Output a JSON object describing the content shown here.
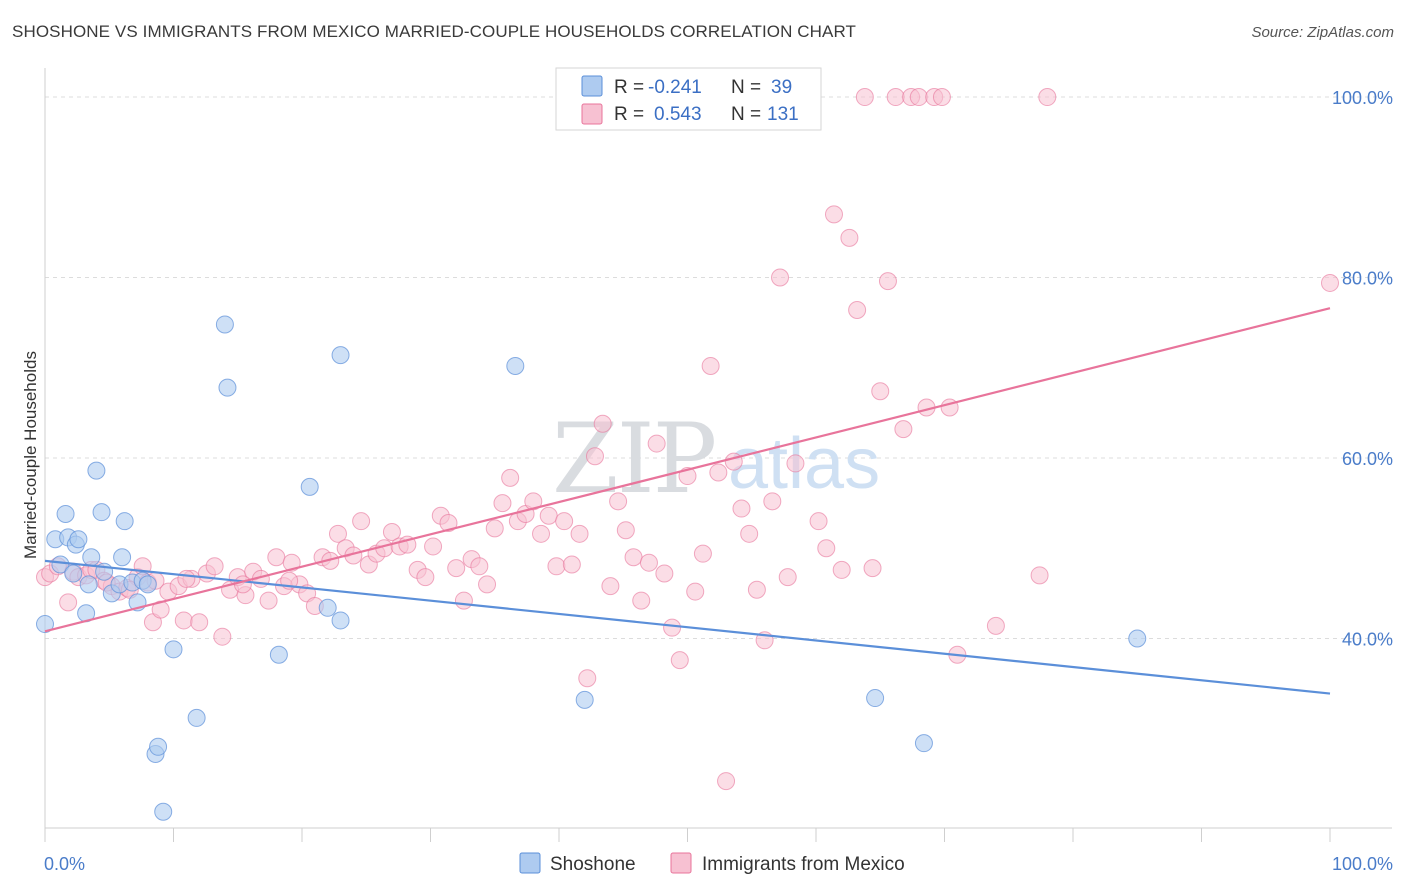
{
  "title": "SHOSHONE VS IMMIGRANTS FROM MEXICO MARRIED-COUPLE HOUSEHOLDS CORRELATION CHART",
  "source": "Source: ZipAtlas.com",
  "watermark": {
    "zip": "ZIP",
    "atlas": "atlas"
  },
  "colors": {
    "shoshone": "#5b8fd9",
    "mexico": "#e8749b",
    "shoshone_fill": "#aecbf0",
    "mexico_fill": "#f7c1d2"
  },
  "legend": {
    "r_label": "R =",
    "n_label": "N =",
    "shoshone_r": "-0.241",
    "shoshone_n": "39",
    "mexico_r": "0.543",
    "mexico_n": "131"
  },
  "chart_data": {
    "type": "scatter",
    "xlabel": "",
    "ylabel": "Married-couple Households",
    "x_tick_labels": [
      "0.0%",
      "100.0%"
    ],
    "y_tick_labels": [
      "40.0%",
      "60.0%",
      "80.0%",
      "100.0%"
    ],
    "y_ticks": [
      40,
      60,
      80,
      100
    ],
    "xlim": [
      0,
      100
    ],
    "ylim": [
      19,
      102
    ],
    "grid": true,
    "series": [
      {
        "name": "Shoshone",
        "trend": [
          [
            0,
            48.6
          ],
          [
            100,
            33.9
          ]
        ],
        "points": [
          [
            0,
            41.6
          ],
          [
            0.8,
            51.0
          ],
          [
            1.2,
            48.2
          ],
          [
            1.6,
            53.8
          ],
          [
            1.8,
            51.2
          ],
          [
            2.2,
            47.2
          ],
          [
            2.4,
            50.4
          ],
          [
            2.6,
            51.0
          ],
          [
            3.2,
            42.8
          ],
          [
            3.4,
            46.0
          ],
          [
            3.6,
            49.0
          ],
          [
            4.0,
            58.6
          ],
          [
            4.4,
            54.0
          ],
          [
            4.6,
            47.4
          ],
          [
            5.2,
            45.0
          ],
          [
            5.8,
            46.0
          ],
          [
            6.0,
            49.0
          ],
          [
            6.2,
            53.0
          ],
          [
            6.8,
            46.2
          ],
          [
            7.2,
            44.0
          ],
          [
            7.6,
            46.4
          ],
          [
            8.0,
            46.0
          ],
          [
            8.6,
            27.2
          ],
          [
            8.8,
            28.0
          ],
          [
            9.2,
            20.8
          ],
          [
            10.0,
            38.8
          ],
          [
            11.8,
            31.2
          ],
          [
            14.2,
            67.8
          ],
          [
            20.6,
            56.8
          ],
          [
            18.2,
            38.2
          ],
          [
            14.0,
            74.8
          ],
          [
            23.0,
            71.4
          ],
          [
            22.0,
            43.4
          ],
          [
            23.0,
            42.0
          ],
          [
            36.6,
            70.2
          ],
          [
            42.0,
            33.2
          ],
          [
            64.6,
            33.4
          ],
          [
            85.0,
            40.0
          ],
          [
            68.4,
            28.4
          ]
        ]
      },
      {
        "name": "Immigrants from Mexico",
        "trend": [
          [
            0,
            40.8
          ],
          [
            100,
            76.6
          ]
        ],
        "points": [
          [
            0,
            46.8
          ],
          [
            0.4,
            47.2
          ],
          [
            1.0,
            48.0
          ],
          [
            1.8,
            44.0
          ],
          [
            2.2,
            47.4
          ],
          [
            2.6,
            46.8
          ],
          [
            3.2,
            47.0
          ],
          [
            3.6,
            47.6
          ],
          [
            4.0,
            47.6
          ],
          [
            4.6,
            46.4
          ],
          [
            5.2,
            45.8
          ],
          [
            5.8,
            45.2
          ],
          [
            6.4,
            45.6
          ],
          [
            7.2,
            46.8
          ],
          [
            7.6,
            48.0
          ],
          [
            8.0,
            46.2
          ],
          [
            8.4,
            41.8
          ],
          [
            9.0,
            43.2
          ],
          [
            9.6,
            45.2
          ],
          [
            10.4,
            45.8
          ],
          [
            10.8,
            42.0
          ],
          [
            11.4,
            46.6
          ],
          [
            12.0,
            41.8
          ],
          [
            12.6,
            47.2
          ],
          [
            13.2,
            48.0
          ],
          [
            13.8,
            40.2
          ],
          [
            14.4,
            45.4
          ],
          [
            15.0,
            46.8
          ],
          [
            15.6,
            44.8
          ],
          [
            16.2,
            47.4
          ],
          [
            16.8,
            46.6
          ],
          [
            17.4,
            44.2
          ],
          [
            18.0,
            49.0
          ],
          [
            18.6,
            45.8
          ],
          [
            19.2,
            48.4
          ],
          [
            19.8,
            46.0
          ],
          [
            20.4,
            45.0
          ],
          [
            21.0,
            43.6
          ],
          [
            21.6,
            49.0
          ],
          [
            22.2,
            48.6
          ],
          [
            22.8,
            51.6
          ],
          [
            23.4,
            50.0
          ],
          [
            24.0,
            49.2
          ],
          [
            24.6,
            53.0
          ],
          [
            25.2,
            48.2
          ],
          [
            25.8,
            49.4
          ],
          [
            26.4,
            50.0
          ],
          [
            27.0,
            51.8
          ],
          [
            27.6,
            50.2
          ],
          [
            28.2,
            50.4
          ],
          [
            29.0,
            47.6
          ],
          [
            29.6,
            46.8
          ],
          [
            30.2,
            50.2
          ],
          [
            30.8,
            53.6
          ],
          [
            31.4,
            52.8
          ],
          [
            32.0,
            47.8
          ],
          [
            32.6,
            44.2
          ],
          [
            33.2,
            48.8
          ],
          [
            33.8,
            48.0
          ],
          [
            34.4,
            46.0
          ],
          [
            35.0,
            52.2
          ],
          [
            35.6,
            55.0
          ],
          [
            36.2,
            57.8
          ],
          [
            36.8,
            53.0
          ],
          [
            37.4,
            53.8
          ],
          [
            38.0,
            55.2
          ],
          [
            38.6,
            51.6
          ],
          [
            39.2,
            53.6
          ],
          [
            39.8,
            48.0
          ],
          [
            40.4,
            53.0
          ],
          [
            41.0,
            48.2
          ],
          [
            41.6,
            51.6
          ],
          [
            42.2,
            35.6
          ],
          [
            42.8,
            60.2
          ],
          [
            43.4,
            63.8
          ],
          [
            44.0,
            45.8
          ],
          [
            44.6,
            55.2
          ],
          [
            45.2,
            52.0
          ],
          [
            45.8,
            49.0
          ],
          [
            46.4,
            44.2
          ],
          [
            47.0,
            48.4
          ],
          [
            47.6,
            61.6
          ],
          [
            48.2,
            47.2
          ],
          [
            48.8,
            41.2
          ],
          [
            49.4,
            37.6
          ],
          [
            50.0,
            58.0
          ],
          [
            50.6,
            45.2
          ],
          [
            51.2,
            49.4
          ],
          [
            51.8,
            70.2
          ],
          [
            52.4,
            58.4
          ],
          [
            53.0,
            24.2
          ],
          [
            53.6,
            59.6
          ],
          [
            54.2,
            54.4
          ],
          [
            54.8,
            51.6
          ],
          [
            55.4,
            45.4
          ],
          [
            56.0,
            39.8
          ],
          [
            56.6,
            55.2
          ],
          [
            57.2,
            80.0
          ],
          [
            57.8,
            46.8
          ],
          [
            58.4,
            59.4
          ],
          [
            59.0,
            100.0
          ],
          [
            59.6,
            100.0
          ],
          [
            60.2,
            53.0
          ],
          [
            60.8,
            50.0
          ],
          [
            61.4,
            87.0
          ],
          [
            62.0,
            47.6
          ],
          [
            62.6,
            84.4
          ],
          [
            63.2,
            76.4
          ],
          [
            63.8,
            100.0
          ],
          [
            64.4,
            47.8
          ],
          [
            65.0,
            67.4
          ],
          [
            65.6,
            79.6
          ],
          [
            66.2,
            100.0
          ],
          [
            66.8,
            63.2
          ],
          [
            67.4,
            100.0
          ],
          [
            68.0,
            100.0
          ],
          [
            68.6,
            65.6
          ],
          [
            69.2,
            100.0
          ],
          [
            69.8,
            100.0
          ],
          [
            70.4,
            65.6
          ],
          [
            71.0,
            38.2
          ],
          [
            74.0,
            41.4
          ],
          [
            77.4,
            47.0
          ],
          [
            78.0,
            100.0
          ],
          [
            100.0,
            79.4
          ],
          [
            4.8,
            46.2
          ],
          [
            6.6,
            45.4
          ],
          [
            8.6,
            46.4
          ],
          [
            11.0,
            46.6
          ],
          [
            15.4,
            46.0
          ],
          [
            19.0,
            46.4
          ]
        ]
      }
    ]
  }
}
